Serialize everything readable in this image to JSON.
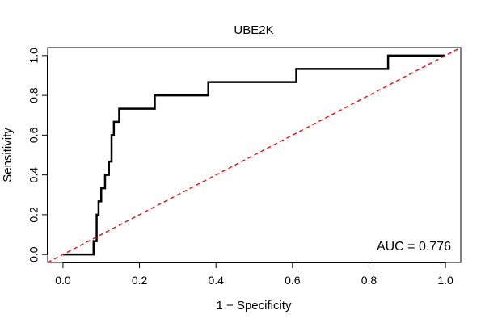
{
  "chart_data": {
    "type": "line",
    "title": "UBE2K",
    "xlabel": "1 − Specificity",
    "ylabel": "Sensitivity",
    "xlim": [
      -0.04,
      1.04
    ],
    "ylim": [
      -0.04,
      1.04
    ],
    "x_ticks": [
      0.0,
      0.2,
      0.4,
      0.6,
      0.8,
      1.0
    ],
    "x_tick_labels": [
      "0.0",
      "0.2",
      "0.4",
      "0.6",
      "0.8",
      "1.0"
    ],
    "y_ticks": [
      0.0,
      0.2,
      0.4,
      0.6,
      0.8,
      1.0
    ],
    "y_tick_labels": [
      "0.0",
      "0.2",
      "0.4",
      "0.6",
      "0.8",
      "1.0"
    ],
    "grid": false,
    "annotation": "AUC = 0.776",
    "series": [
      {
        "color": "#000000",
        "style": "solid-step",
        "x": [
          0.0,
          0.08,
          0.08,
          0.088,
          0.088,
          0.093,
          0.093,
          0.1,
          0.1,
          0.11,
          0.11,
          0.12,
          0.12,
          0.127,
          0.127,
          0.133,
          0.133,
          0.147,
          0.147,
          0.16,
          0.16,
          0.24,
          0.24,
          0.38,
          0.38,
          0.61,
          0.61,
          0.85,
          0.85,
          1.0
        ],
        "y": [
          0.0,
          0.0,
          0.067,
          0.067,
          0.2,
          0.2,
          0.267,
          0.267,
          0.333,
          0.333,
          0.4,
          0.4,
          0.467,
          0.467,
          0.6,
          0.6,
          0.667,
          0.667,
          0.733,
          0.733,
          0.733,
          0.733,
          0.8,
          0.8,
          0.867,
          0.867,
          0.933,
          0.933,
          1.0,
          1.0
        ]
      },
      {
        "color": "#e41a1c",
        "style": "dashed",
        "x": [
          -0.04,
          1.04
        ],
        "y": [
          -0.04,
          1.04
        ]
      }
    ]
  }
}
